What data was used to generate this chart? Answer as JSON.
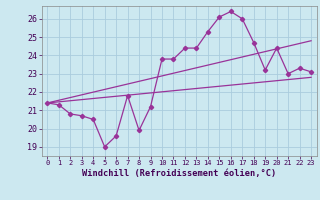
{
  "xlabel": "Windchill (Refroidissement éolien,°C)",
  "background_color": "#cce8f0",
  "grid_color": "#aaccdd",
  "line_color": "#993399",
  "x_ticks": [
    0,
    1,
    2,
    3,
    4,
    5,
    6,
    7,
    8,
    9,
    10,
    11,
    12,
    13,
    14,
    15,
    16,
    17,
    18,
    19,
    20,
    21,
    22,
    23
  ],
  "ylim": [
    18.5,
    26.7
  ],
  "xlim": [
    -0.5,
    23.5
  ],
  "y_ticks": [
    19,
    20,
    21,
    22,
    23,
    24,
    25,
    26
  ],
  "series1_x": [
    0,
    1,
    2,
    3,
    4,
    5,
    6,
    7,
    8,
    9,
    10,
    11,
    12,
    13,
    14,
    15,
    16,
    17,
    18,
    19,
    20,
    21,
    22,
    23
  ],
  "series1_y": [
    21.4,
    21.3,
    20.8,
    20.7,
    20.5,
    19.0,
    19.6,
    21.8,
    19.9,
    21.2,
    23.8,
    23.8,
    24.4,
    24.4,
    25.3,
    26.1,
    26.4,
    26.0,
    24.7,
    23.2,
    24.4,
    23.0,
    23.3,
    23.1
  ],
  "series2_x": [
    0,
    23
  ],
  "series2_y": [
    21.4,
    22.8
  ],
  "series3_x": [
    0,
    23
  ],
  "series3_y": [
    21.4,
    24.8
  ],
  "xtick_fontsize": 5.0,
  "ytick_fontsize": 6.0,
  "xlabel_fontsize": 6.2
}
